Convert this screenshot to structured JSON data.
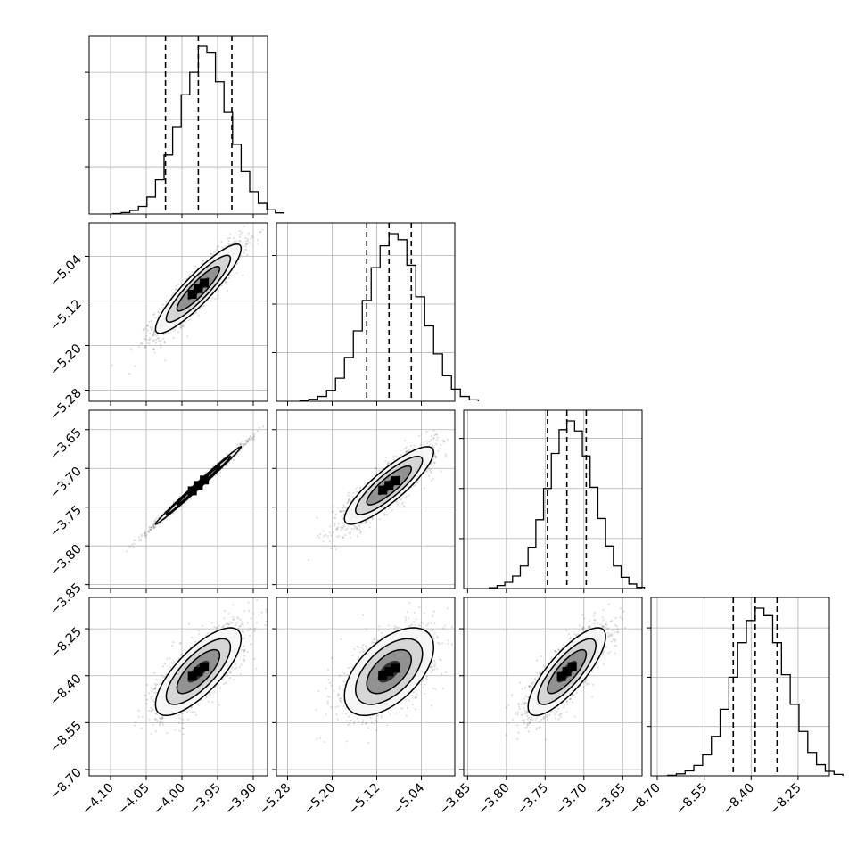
{
  "chart_data": {
    "type": "corner",
    "colors": {
      "line": "#000000",
      "grid": "#b0b0b0",
      "scatter": "#000000",
      "level_fills": [
        "#f7f7f7",
        "#d2d2d2",
        "#8c8c8c",
        "#2a2a2a"
      ]
    },
    "grid": true,
    "parameters": [
      {
        "index": 0,
        "range": [
          -4.13,
          -3.88
        ],
        "ticks": [
          -4.1,
          -4.05,
          -4.0,
          -3.95,
          -3.9
        ],
        "tick_labels": [
          "−4.10",
          "−4.05",
          "−4.00",
          "−3.95",
          "−3.90"
        ],
        "median": -3.977,
        "quantiles": [
          -4.023,
          -3.977,
          -3.93
        ],
        "sigma": 0.03,
        "hist_counts": [
          0.2,
          0.6,
          1.5,
          3.2,
          7.2,
          14.5,
          25.0,
          37.0,
          50.5,
          60.0,
          71.0,
          68.5,
          56.0,
          43.0,
          29.5,
          18.0,
          9.5,
          4.5,
          1.8,
          0.5
        ]
      },
      {
        "index": 1,
        "range": [
          -5.3,
          -4.98
        ],
        "ticks": [
          -5.28,
          -5.2,
          -5.12,
          -5.04
        ],
        "tick_labels": [
          "−5.28",
          "−5.20",
          "−5.12",
          "−5.04"
        ],
        "median": -5.098,
        "quantiles": [
          -5.138,
          -5.098,
          -5.058
        ],
        "sigma": 0.04,
        "hist_counts": [
          0.2,
          0.8,
          2.0,
          4.5,
          9.5,
          18.0,
          29.0,
          41.5,
          55.0,
          64.0,
          69.0,
          66.5,
          56.0,
          43.0,
          31.0,
          19.5,
          10.5,
          5.0,
          2.0,
          0.6
        ]
      },
      {
        "index": 2,
        "range": [
          -3.855,
          -3.625
        ],
        "ticks": [
          -3.85,
          -3.8,
          -3.75,
          -3.7,
          -3.65
        ],
        "tick_labels": [
          "−3.85",
          "−3.80",
          "−3.75",
          "−3.70",
          "−3.65"
        ],
        "median": -3.722,
        "quantiles": [
          -3.747,
          -3.722,
          -3.697
        ],
        "sigma": 0.025,
        "hist_counts": [
          0.3,
          1.2,
          2.5,
          5.0,
          9.0,
          16.5,
          27.5,
          40.0,
          54.0,
          63.5,
          67.0,
          63.0,
          53.0,
          40.5,
          28.0,
          17.0,
          9.0,
          4.5,
          1.8,
          0.5
        ]
      },
      {
        "index": 3,
        "range": [
          -8.72,
          -8.15
        ],
        "ticks": [
          -8.7,
          -8.55,
          -8.4,
          -8.25
        ],
        "tick_labels": [
          "−8.70",
          "−8.55",
          "−8.40",
          "−8.25"
        ],
        "median": -8.387,
        "quantiles": [
          -8.457,
          -8.387,
          -8.317
        ],
        "sigma": 0.07,
        "hist_counts": [
          0.2,
          0.8,
          2.0,
          4.2,
          8.5,
          16.0,
          27.0,
          40.0,
          54.0,
          63.0,
          68.0,
          65.0,
          54.0,
          41.0,
          29.0,
          18.0,
          9.5,
          4.5,
          1.8,
          0.6
        ]
      }
    ],
    "correlations": {
      "1_0": 0.9,
      "2_0": 0.995,
      "2_1": 0.86,
      "3_0": 0.75,
      "3_1": 0.55,
      "3_2": 0.8
    }
  }
}
